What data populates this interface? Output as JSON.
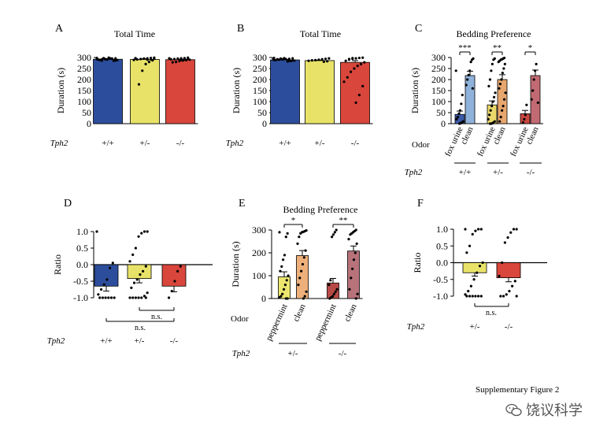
{
  "figure_label": "Supplementary Figure 2",
  "watermark": {
    "text": "饶议科学",
    "icon": "wechat-icon"
  },
  "genotype_axis_label": "Tph2",
  "odor_axis_label": "Odor",
  "colors": {
    "wt": "#2c4d9b",
    "het": "#e8e368",
    "ko": "#d9463b",
    "fox_wt": "#3a5aa8",
    "clean_wt": "#8fb2db",
    "fox_het": "#ead96a",
    "clean_het": "#e7a66e",
    "fox_ko": "#c8473f",
    "clean_ko": "#c26a73",
    "pep_het": "#ece66f",
    "clean_het_e": "#eeb07a",
    "pep_ko": "#b74a46",
    "clean_ko_e": "#b8727a"
  },
  "chart_data": [
    {
      "panel": "A",
      "type": "bar",
      "title": "Total Time",
      "ylabel": "Duration (s)",
      "ylim": [
        0,
        300
      ],
      "yticks": [
        0,
        50,
        100,
        150,
        200,
        250,
        300
      ],
      "categories": [
        "+/+",
        "+/-",
        "-/-"
      ],
      "values": [
        292,
        291,
        290
      ],
      "errors": [
        2,
        3,
        2
      ],
      "points": [
        [
          298,
          296,
          295,
          294,
          293,
          292,
          290,
          288,
          285,
          296,
          291,
          297,
          289,
          293,
          287,
          294,
          299,
          292,
          286,
          290
        ],
        [
          299,
          298,
          296,
          295,
          293,
          291,
          289,
          287,
          280,
          270,
          240,
          178,
          297,
          294,
          292,
          290
        ],
        [
          299,
          297,
          296,
          295,
          293,
          292,
          290,
          288,
          286,
          284,
          280,
          278,
          296,
          294,
          291,
          289
        ]
      ]
    },
    {
      "panel": "B",
      "type": "bar",
      "title": "Total Time",
      "ylabel": "Duration (s)",
      "ylim": [
        0,
        300
      ],
      "yticks": [
        0,
        50,
        100,
        150,
        200,
        250,
        300
      ],
      "categories": [
        "+/+",
        "+/-",
        "-/-"
      ],
      "values": [
        289,
        286,
        278
      ],
      "errors": [
        2,
        2,
        8
      ],
      "points": [
        [
          298,
          296,
          294,
          293,
          291,
          290,
          288,
          286,
          284,
          282,
          297,
          295,
          292,
          289,
          287,
          285
        ],
        [
          296,
          294,
          292,
          290,
          288,
          287,
          285,
          283,
          281
        ],
        [
          299,
          298,
          296,
          294,
          290,
          285,
          278,
          270,
          262,
          250,
          235,
          210,
          190,
          170,
          130,
          95,
          297,
          293
        ]
      ]
    },
    {
      "panel": "C",
      "type": "bar",
      "title": "Bedding Preference",
      "ylabel": "Duration (s)",
      "ylim": [
        0,
        300
      ],
      "yticks": [
        0,
        50,
        100,
        150,
        200,
        250,
        300
      ],
      "categories": [
        "fox urine",
        "clean",
        "fox urine",
        "clean",
        "fox urine",
        "clean"
      ],
      "groups": [
        "+/+",
        "+/-",
        "-/-"
      ],
      "values": [
        42,
        218,
        85,
        200,
        45,
        218
      ],
      "errors": [
        15,
        20,
        18,
        22,
        15,
        25
      ],
      "significance": [
        "***",
        "**",
        "*"
      ],
      "points": [
        [
          240,
          130,
          90,
          60,
          45,
          30,
          20,
          10,
          5,
          2,
          0
        ],
        [
          295,
          290,
          280,
          240,
          220,
          200,
          175,
          160
        ],
        [
          295,
          290,
          270,
          240,
          200,
          170,
          140,
          120,
          100,
          80,
          60,
          40,
          20,
          10,
          5,
          2,
          0,
          0
        ],
        [
          298,
          295,
          292,
          290,
          285,
          280,
          270,
          250,
          230,
          200,
          180,
          160,
          140,
          110,
          80,
          60,
          30,
          10
        ],
        [
          85,
          40,
          20,
          5
        ],
        [
          270,
          240,
          200,
          150,
          110,
          95
        ]
      ]
    },
    {
      "panel": "D",
      "type": "bar",
      "ylabel": "Ratio",
      "ylim": [
        -1.0,
        1.0
      ],
      "yticks": [
        -1.0,
        -0.5,
        0.0,
        0.5,
        1.0
      ],
      "ytick_labels": [
        "-1.0",
        "-0.5",
        "0.0",
        "0.5",
        "1.0"
      ],
      "categories": [
        "+/+",
        "+/-",
        "-/-"
      ],
      "values": [
        -0.65,
        -0.42,
        -0.65
      ],
      "errors": [
        0.15,
        0.13,
        0.17
      ],
      "significance": [
        "n.s.",
        "n.s."
      ],
      "points": [
        [
          1.0,
          0.05,
          -0.1,
          -0.45,
          -0.6,
          -0.75,
          -0.9,
          -1.0,
          -1.0,
          -1.0,
          -1.0,
          -1.0,
          -1.0
        ],
        [
          1.0,
          1.0,
          0.95,
          0.85,
          0.5,
          0.3,
          0.1,
          -0.05,
          -0.2,
          -0.3,
          -0.45,
          -0.55,
          -0.7,
          -0.85,
          -0.95,
          -1.0,
          -1.0,
          -1.0,
          -1.0,
          -1.0,
          -1.0
        ],
        [
          -0.05,
          -0.2,
          -0.5,
          -0.8,
          -1.0
        ]
      ]
    },
    {
      "panel": "E",
      "type": "bar",
      "title": "Bedding Preference",
      "ylabel": "Duration (s)",
      "ylim": [
        0,
        300
      ],
      "yticks": [
        0,
        100,
        200,
        300
      ],
      "categories": [
        "peppermint",
        "clean",
        "peppermint",
        "clean"
      ],
      "groups": [
        "+/-",
        "-/-"
      ],
      "values": [
        95,
        188,
        68,
        208
      ],
      "errors": [
        22,
        22,
        20,
        22
      ],
      "significance": [
        "*",
        "**"
      ],
      "points": [
        [
          290,
          285,
          270,
          190,
          170,
          140,
          120,
          100,
          80,
          60,
          40,
          20,
          10,
          5,
          0,
          0
        ],
        [
          298,
          295,
          292,
          290,
          285,
          270,
          240,
          210,
          180,
          150,
          120,
          90,
          60,
          30,
          10,
          0
        ],
        [
          300,
          290,
          280,
          270,
          80,
          60,
          40,
          30,
          20,
          10,
          5,
          0
        ],
        [
          300,
          295,
          290,
          285,
          280,
          260,
          240,
          200,
          170,
          130,
          90,
          40,
          20,
          0
        ]
      ]
    },
    {
      "panel": "F",
      "type": "bar",
      "ylabel": "Ratio",
      "ylim": [
        -1.0,
        1.0
      ],
      "yticks": [
        -1.0,
        -0.5,
        0.0,
        0.5,
        1.0
      ],
      "ytick_labels": [
        "-1.0",
        "-0.5",
        "0.0",
        "0.5",
        "1.0"
      ],
      "categories": [
        "+/-",
        "-/-"
      ],
      "values": [
        -0.3,
        -0.45
      ],
      "errors": [
        0.1,
        0.12
      ],
      "significance": [
        "n.s."
      ],
      "points": [
        [
          1.0,
          1.0,
          1.0,
          0.95,
          0.85,
          0.5,
          0.3,
          0.0,
          -0.1,
          -0.3,
          -0.5,
          -0.7,
          -0.85,
          -0.95,
          -1.0,
          -1.0,
          -1.0,
          -1.0,
          -1.0,
          -1.0
        ],
        [
          1.0,
          1.0,
          0.9,
          0.75,
          0.6,
          0.0,
          -0.4,
          -0.55,
          -0.7,
          -0.85,
          -0.95,
          -1.0,
          -1.0,
          -1.0
        ]
      ]
    }
  ]
}
